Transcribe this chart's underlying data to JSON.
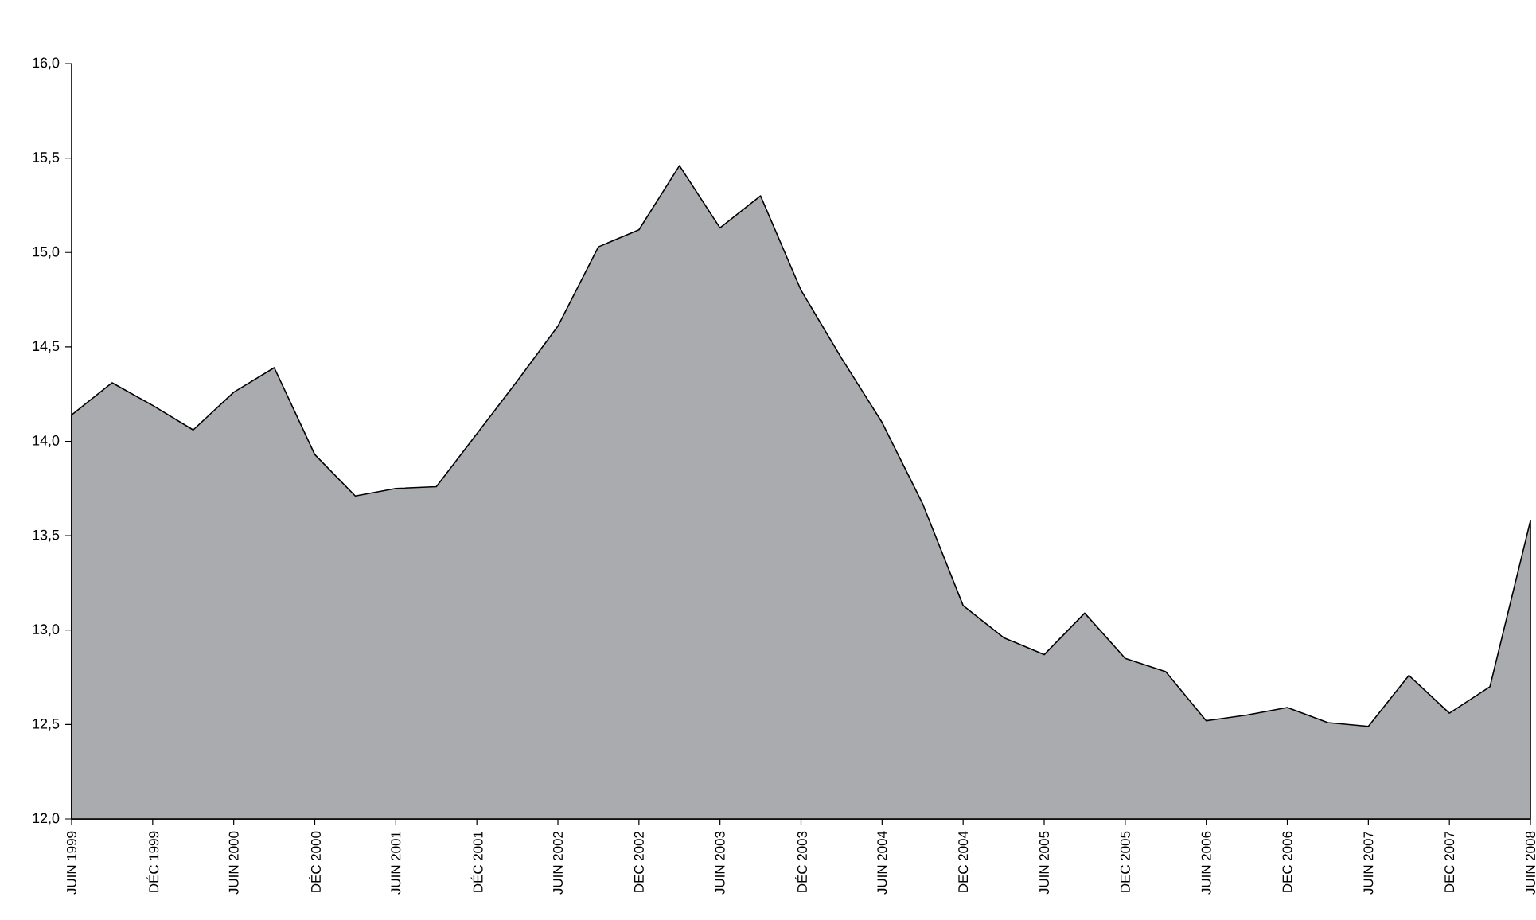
{
  "chart_data": {
    "type": "area",
    "categories": [
      "JUIN 1999",
      null,
      "DÉC 1999",
      null,
      "JUIN 2000",
      null,
      "DÉC 2000",
      null,
      "JUIN 2001",
      null,
      "DÉC 2001",
      null,
      "JUIN 2002",
      null,
      "DEC 2002",
      null,
      "JUIN 2003",
      null,
      "DÉC 2003",
      null,
      "JUIN 2004",
      null,
      "DEC 2004",
      null,
      "JUIN 2005",
      null,
      "DEC 2005",
      null,
      "JUIN 2006",
      null,
      "DEC 2006",
      null,
      "JUIN 2007",
      null,
      "DEC 2007",
      null,
      "JUIN 2008"
    ],
    "values": [
      14.14,
      14.31,
      14.19,
      14.06,
      14.26,
      14.39,
      13.93,
      13.71,
      13.75,
      13.76,
      14.04,
      14.32,
      14.61,
      15.03,
      15.12,
      15.46,
      15.13,
      15.3,
      14.8,
      14.44,
      14.1,
      13.67,
      13.13,
      12.96,
      12.87,
      13.09,
      12.85,
      12.78,
      12.52,
      12.55,
      12.59,
      12.51,
      12.49,
      12.76,
      12.56,
      12.7,
      13.58
    ],
    "color": "#a9abae",
    "ylim": [
      12,
      16
    ],
    "yticks": [
      {
        "value": 12,
        "label": "12,0"
      },
      {
        "value": 12.5,
        "label": "12,5"
      },
      {
        "value": 13,
        "label": "13,0"
      },
      {
        "value": 13.5,
        "label": "13,5"
      },
      {
        "value": 14,
        "label": "14,0"
      },
      {
        "value": 14.5,
        "label": "14,5"
      },
      {
        "value": 15,
        "label": "15,0"
      },
      {
        "value": 15.5,
        "label": "15,5"
      },
      {
        "value": 16,
        "label": "16,0"
      }
    ]
  }
}
